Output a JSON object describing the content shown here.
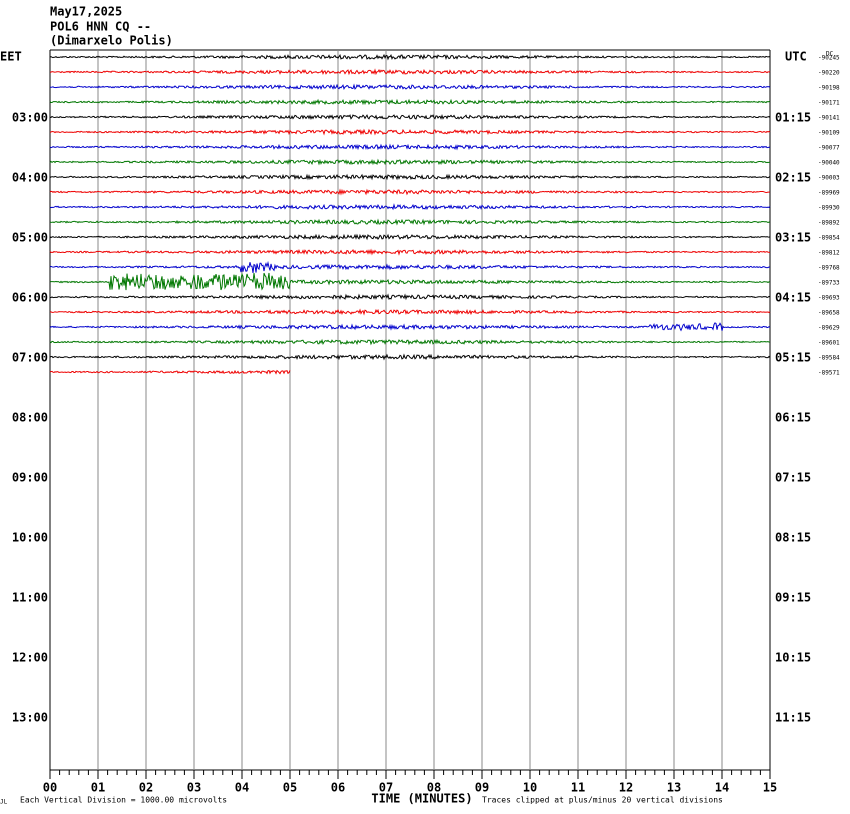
{
  "header": {
    "date": "May17,2025",
    "station": "POL6 HNN CQ --",
    "location": "(Dimarxelo Polis)"
  },
  "left_axis": {
    "title": "EET",
    "labels": [
      "03:00",
      "04:00",
      "05:00",
      "06:00",
      "07:00",
      "08:00",
      "09:00",
      "10:00",
      "11:00",
      "12:00",
      "13:00"
    ]
  },
  "right_axis": {
    "title": "UTC",
    "labels": [
      "01:15",
      "02:15",
      "03:15",
      "04:15",
      "05:15",
      "06:15",
      "07:15",
      "08:15",
      "09:15",
      "10:15",
      "11:15"
    ]
  },
  "dc_label": "DC",
  "trace_labels": [
    "-90245",
    "-90220",
    "-90198",
    "-90171",
    "-90141",
    "-90109",
    "-90077",
    "-90040",
    "-90003",
    "-89969",
    "-89930",
    "-89892",
    "-89854",
    "-89812",
    "-89768",
    "-89733",
    "-89693",
    "-89658",
    "-89629",
    "-89601",
    "-89584",
    "-89571"
  ],
  "x_axis": {
    "labels": [
      "00",
      "01",
      "02",
      "03",
      "04",
      "05",
      "06",
      "07",
      "08",
      "09",
      "10",
      "11",
      "12",
      "13",
      "14",
      "15"
    ],
    "title": "TIME (MINUTES)"
  },
  "footer": {
    "corner": "JL",
    "scale": "Each Vertical Division = 1000.00 microvolts",
    "clip": "Traces clipped at plus/minus 20 vertical divisions"
  }
}
